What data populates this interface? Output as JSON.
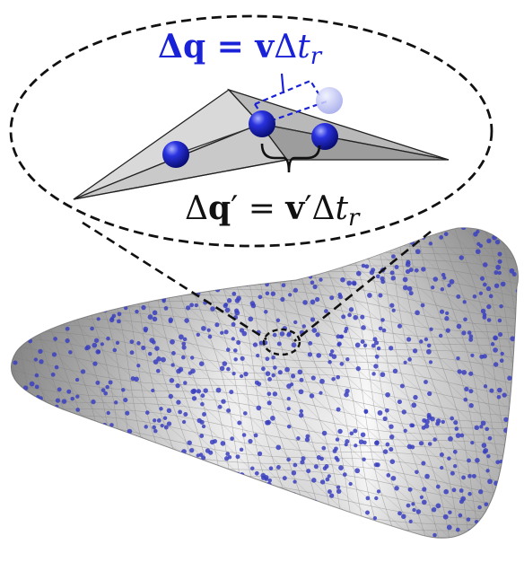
{
  "labels": {
    "eq_top": {
      "delta": "Δ",
      "q": "q",
      "equals": " = ",
      "v": "v",
      "delta_t": "Δ",
      "t": "t",
      "sub": "r"
    },
    "eq_bottom": {
      "delta": "Δ",
      "q": "q",
      "prime_q": "′",
      "equals": " = ",
      "v": "v",
      "prime_v": "′",
      "delta_t": "Δ",
      "t": "t",
      "sub": "r"
    }
  },
  "colors": {
    "accent_blue": "#1a22d8",
    "particle_blue": "#2a2fd0",
    "surface_grey": "#cfcfcf",
    "mesh_line": "#8a8a8a",
    "dash": "#111111"
  }
}
